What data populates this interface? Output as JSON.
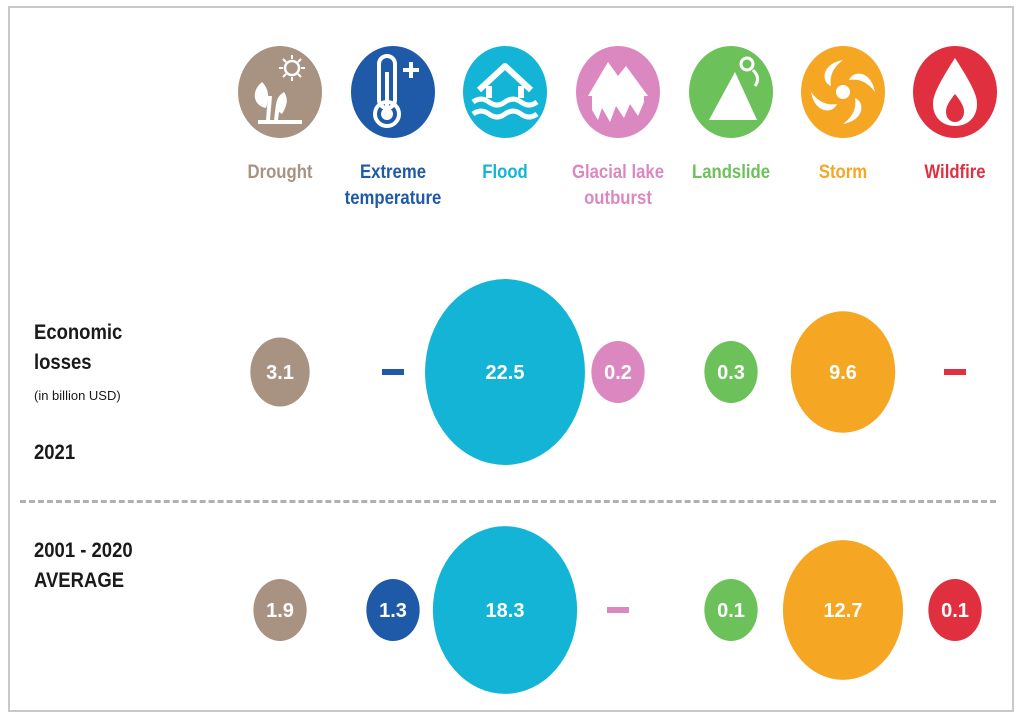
{
  "row_labels": {
    "y2021_title": "Economic\nlosses",
    "y2021_unit": "(in billion USD)",
    "y2021_year": "2021",
    "avg_title": "2001 - 2020\nAVERAGE"
  },
  "chart_data": {
    "type": "bubble",
    "unit": "billion USD",
    "categories": [
      "Drought",
      "Extreme temperature",
      "Flood",
      "Glacial lake outburst",
      "Landslide",
      "Storm",
      "Wildfire"
    ],
    "category_colors": [
      "#a89383",
      "#1f5aa8",
      "#14b4d6",
      "#dc88c0",
      "#6dc15a",
      "#f5a623",
      "#e0303f"
    ],
    "category_icons": [
      "drought-icon",
      "thermometer-icon",
      "flood-icon",
      "glacier-icon",
      "landslide-icon",
      "storm-icon",
      "wildfire-icon"
    ],
    "series": [
      {
        "name": "2021",
        "values": [
          3.1,
          null,
          22.5,
          0.2,
          0.3,
          9.6,
          null
        ],
        "labels": [
          "3.1",
          "–",
          "22.5",
          "0.2",
          "0.3",
          "9.6",
          "–"
        ]
      },
      {
        "name": "2001 - 2020 AVERAGE",
        "values": [
          1.9,
          1.3,
          18.3,
          null,
          0.1,
          12.7,
          0.1
        ],
        "labels": [
          "1.9",
          "1.3",
          "18.3",
          "–",
          "0.1",
          "12.7",
          "0.1"
        ]
      }
    ]
  }
}
